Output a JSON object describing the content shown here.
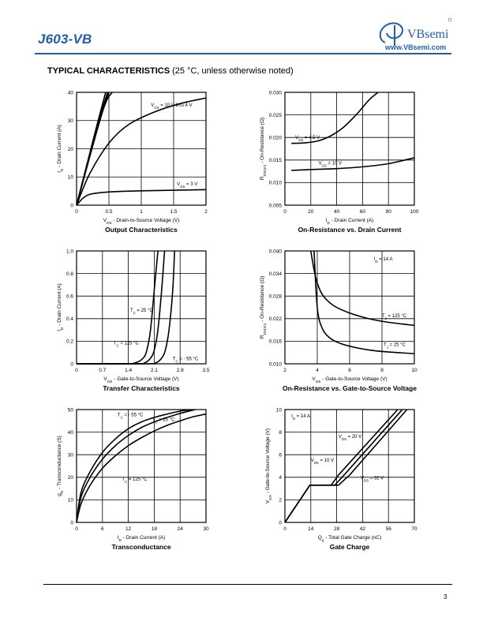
{
  "header": {
    "part_number": "J603-VB",
    "brand": "VBsemi",
    "url": "www.VBsemi.com",
    "accent_color": "#1f5fa8"
  },
  "section": {
    "title": "TYPICAL CHARACTERISTICS",
    "note": "(25 °C, unless otherwise noted)"
  },
  "page_number": "3",
  "chart_data": [
    {
      "id": "output",
      "type": "line",
      "title": "Output Characteristics",
      "xlabel": "VDS - Drain-to-Source Voltage (V)",
      "ylabel": "ID - Drain Current (A)",
      "xlim": [
        0,
        2
      ],
      "ylim": [
        0,
        40
      ],
      "xticks": [
        0,
        0.5,
        1,
        1.5,
        2
      ],
      "xtick_labels": [
        "0",
        "0.5",
        "1",
        "1.5",
        "2"
      ],
      "yticks": [
        0,
        10,
        20,
        30,
        40
      ],
      "ytick_labels": [
        "0",
        "10",
        "20",
        "30",
        "40"
      ],
      "grid": true,
      "series": [
        {
          "name": "VGS = 10 V thru 4 V",
          "x": [
            0,
            0.4,
            0.55
          ],
          "y": [
            0,
            33,
            40
          ]
        },
        {
          "name": "",
          "x": [
            0,
            0.35,
            0.5
          ],
          "y": [
            0,
            30,
            40
          ]
        },
        {
          "name": "",
          "x": [
            0,
            0.32,
            0.48
          ],
          "y": [
            0,
            28,
            40
          ]
        },
        {
          "name": "",
          "x": [
            0,
            0.3,
            0.45
          ],
          "y": [
            0,
            27,
            40
          ]
        },
        {
          "name": "",
          "x": [
            0,
            0.2,
            0.5,
            0.8,
            1.2,
            1.6,
            2.0
          ],
          "y": [
            0,
            11,
            22,
            28.5,
            33,
            36,
            38
          ]
        },
        {
          "name": "VGS = 3 V",
          "x": [
            0,
            0.1,
            0.2,
            0.35,
            0.6,
            1.0,
            1.5,
            2.0
          ],
          "y": [
            0,
            2.5,
            3.8,
            4.4,
            4.8,
            5.1,
            5.3,
            5.5
          ]
        }
      ],
      "annotations": [
        {
          "text": "VGS = 10 V thru 4 V",
          "x": 1.15,
          "y": 35
        },
        {
          "text": "VGS = 3 V",
          "x": 1.55,
          "y": 7
        }
      ]
    },
    {
      "id": "ron_id",
      "type": "line",
      "title": "On-Resistance vs. Drain Current",
      "xlabel": "ID - Drain Current (A)",
      "ylabel": "RDS(on) - On-Resistance (Ω)",
      "xlim": [
        0,
        100
      ],
      "ylim": [
        0.005,
        0.03
      ],
      "xticks": [
        0,
        20,
        40,
        60,
        80,
        100
      ],
      "xtick_labels": [
        "0",
        "20",
        "40",
        "60",
        "80",
        "100"
      ],
      "yticks": [
        0.005,
        0.01,
        0.015,
        0.02,
        0.025,
        0.03
      ],
      "ytick_labels": [
        "0.005",
        "0.010",
        "0.015",
        "0.020",
        "0.025",
        "0.030"
      ],
      "grid": true,
      "series": [
        {
          "name": "VGS = 4.5 V",
          "x": [
            5,
            15,
            25,
            35,
            45,
            55,
            65,
            72
          ],
          "y": [
            0.0187,
            0.0188,
            0.0192,
            0.0203,
            0.0222,
            0.025,
            0.0283,
            0.03
          ]
        },
        {
          "name": "VGS = 10 V",
          "x": [
            5,
            20,
            40,
            60,
            80,
            100
          ],
          "y": [
            0.0127,
            0.0129,
            0.0131,
            0.0135,
            0.0142,
            0.0155
          ]
        }
      ],
      "annotations": [
        {
          "text": "VGS = 4.5 V",
          "x": 8,
          "y": 0.0197
        },
        {
          "text": "VGS = 10 V",
          "x": 26,
          "y": 0.014
        }
      ]
    },
    {
      "id": "transfer",
      "type": "line",
      "title": "Transfer Characteristics",
      "xlabel": "VGS - Gate-to-Source Voltage (V)",
      "ylabel": "ID - Drain Current (A)",
      "xlim": [
        0,
        3.5
      ],
      "ylim": [
        0,
        1.0
      ],
      "xticks": [
        0,
        0.7,
        1.4,
        2.1,
        2.8,
        3.5
      ],
      "xtick_labels": [
        "0",
        "0.7",
        "1.4",
        "2.1",
        "2.8",
        "3.5"
      ],
      "yticks": [
        0,
        0.2,
        0.4,
        0.6,
        0.8,
        1.0
      ],
      "ytick_labels": [
        "0",
        "0.2",
        "0.4",
        "0.6",
        "0.8",
        "1.0"
      ],
      "grid": true,
      "series": [
        {
          "name": "TC = 125 °C",
          "x": [
            0,
            1.3,
            1.6,
            1.8,
            1.9,
            2.0,
            2.1,
            2.2
          ],
          "y": [
            0,
            0,
            0.01,
            0.05,
            0.12,
            0.3,
            0.65,
            1.0
          ]
        },
        {
          "name": "TC = 25 °C",
          "x": [
            0,
            1.6,
            1.85,
            2.0,
            2.1,
            2.2,
            2.3,
            2.38
          ],
          "y": [
            0,
            0,
            0.01,
            0.05,
            0.12,
            0.3,
            0.65,
            1.0
          ]
        },
        {
          "name": "TC = - 55 °C",
          "x": [
            0,
            1.9,
            2.15,
            2.3,
            2.4,
            2.5,
            2.6,
            2.65
          ],
          "y": [
            0,
            0,
            0.01,
            0.05,
            0.12,
            0.3,
            0.65,
            1.0
          ]
        }
      ],
      "annotations": [
        {
          "text": "TC = 25 °C",
          "x": 1.45,
          "y": 0.46
        },
        {
          "text": "TC = 125 °C",
          "x": 1.0,
          "y": 0.17
        },
        {
          "text": "TC = - 55 °C",
          "x": 2.6,
          "y": 0.03
        }
      ]
    },
    {
      "id": "ron_vgs",
      "type": "line",
      "title": "On-Resistance vs. Gate-to-Source Voltage",
      "xlabel": "VGS - Gate-to-Source Voltage (V)",
      "ylabel": "RDS(on) - On-Resistance (Ω)",
      "xlim": [
        2,
        10
      ],
      "ylim": [
        0.01,
        0.04
      ],
      "xticks": [
        2,
        4,
        6,
        8,
        10
      ],
      "xtick_labels": [
        "2",
        "4",
        "6",
        "8",
        "10"
      ],
      "yticks": [
        0.01,
        0.016,
        0.022,
        0.028,
        0.034,
        0.04
      ],
      "ytick_labels": [
        "0.010",
        "0.016",
        "0.022",
        "0.028",
        "0.034",
        "0.040"
      ],
      "grid": true,
      "series": [
        {
          "name": "TJ = 125 °C",
          "x": [
            3.6,
            3.9,
            4.3,
            5,
            6,
            7,
            8,
            9,
            10
          ],
          "y": [
            0.04,
            0.033,
            0.0285,
            0.0255,
            0.0235,
            0.0222,
            0.0213,
            0.0207,
            0.0202
          ]
        },
        {
          "name": "TJ = 25 °C",
          "x": [
            3.8,
            4.0,
            4.3,
            4.8,
            5.5,
            6.5,
            7.5,
            8.5,
            10
          ],
          "y": [
            0.04,
            0.025,
            0.0195,
            0.0168,
            0.0153,
            0.0142,
            0.0135,
            0.0131,
            0.0127
          ]
        }
      ],
      "annotations": [
        {
          "text": "ID = 14 A",
          "x": 7.5,
          "y": 0.0375
        },
        {
          "text": "TJ = 125 °C",
          "x": 8.0,
          "y": 0.0224
        },
        {
          "text": "TJ = 25 °C",
          "x": 8.1,
          "y": 0.0147
        }
      ]
    },
    {
      "id": "gfs",
      "type": "line",
      "title": "Transconductance",
      "xlabel": "ID - Drain Current (A)",
      "ylabel": "gfs - Transconductance (S)",
      "xlim": [
        0,
        30
      ],
      "ylim": [
        0,
        50
      ],
      "xticks": [
        0,
        6,
        12,
        18,
        24,
        30
      ],
      "xtick_labels": [
        "0",
        "6",
        "12",
        "18",
        "24",
        "30"
      ],
      "yticks": [
        0,
        10,
        20,
        30,
        40,
        50
      ],
      "ytick_labels": [
        "0",
        "10",
        "20",
        "30",
        "40",
        "50"
      ],
      "grid": true,
      "series": [
        {
          "name": "TC = - 55 °C",
          "x": [
            0,
            1,
            3,
            6,
            9,
            12,
            15,
            18,
            21,
            24,
            26.5
          ],
          "y": [
            0,
            13,
            22,
            31,
            37,
            41.5,
            44.5,
            46.5,
            48,
            49.3,
            50
          ]
        },
        {
          "name": "TC = 25 °C",
          "x": [
            0,
            1,
            3,
            6,
            9,
            12,
            15,
            18,
            21,
            24,
            27.5
          ],
          "y": [
            0,
            11,
            19.5,
            28,
            34,
            38.5,
            42,
            44.5,
            46.5,
            48.3,
            50
          ]
        },
        {
          "name": "TC = 125 °C",
          "x": [
            0,
            1,
            3,
            6,
            9,
            12,
            15,
            18,
            21,
            24,
            27,
            30
          ],
          "y": [
            0,
            8,
            16,
            24,
            29.5,
            34,
            37.5,
            40.5,
            43,
            45,
            46.8,
            48
          ]
        }
      ],
      "annotations": [
        {
          "text": "TC = - 55 °C",
          "x": 9.5,
          "y": 47
        },
        {
          "text": "TC = 25 °C",
          "x": 17.5,
          "y": 45
        },
        {
          "text": "TC = 125 °C",
          "x": 10.5,
          "y": 18.5
        }
      ]
    },
    {
      "id": "gate_charge",
      "type": "line",
      "title": "Gate Charge",
      "xlabel": "Qg - Total Gate Charge (nC)",
      "ylabel": "VGS - Gate-to-Source Voltage (V)",
      "xlim": [
        0,
        70
      ],
      "ylim": [
        0,
        10
      ],
      "xticks": [
        0,
        14,
        28,
        42,
        56,
        70
      ],
      "xtick_labels": [
        "0",
        "14",
        "28",
        "42",
        "56",
        "70"
      ],
      "yticks": [
        0,
        2,
        4,
        6,
        8,
        10
      ],
      "ytick_labels": [
        "0",
        "2",
        "4",
        "6",
        "8",
        "10"
      ],
      "grid": true,
      "series": [
        {
          "name": "VDS = 10 V",
          "x": [
            0,
            13.5,
            25,
            29,
            61
          ],
          "y": [
            0,
            3.3,
            3.3,
            4.2,
            10
          ]
        },
        {
          "name": "VDS = 20 V",
          "x": [
            0,
            13.5,
            27,
            32,
            63.5
          ],
          "y": [
            0,
            3.3,
            3.3,
            4.2,
            10
          ]
        },
        {
          "name": "VDS = 32 V",
          "x": [
            0,
            13.5,
            29,
            35,
            66
          ],
          "y": [
            0,
            3.3,
            3.3,
            4.2,
            10
          ]
        }
      ],
      "annotations": [
        {
          "text": "ID = 14 A",
          "x": 3.5,
          "y": 9.3
        },
        {
          "text": "VDS = 20 V",
          "x": 29,
          "y": 7.5
        },
        {
          "text": "VDS = 10 V",
          "x": 14,
          "y": 5.4
        },
        {
          "text": "VDS = 32 V",
          "x": 41,
          "y": 3.8
        }
      ]
    }
  ]
}
